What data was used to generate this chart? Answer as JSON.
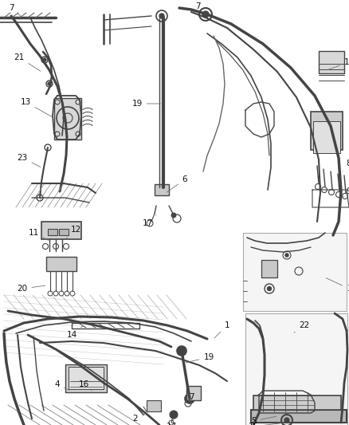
{
  "figsize": [
    4.38,
    5.33
  ],
  "dpi": 100,
  "bg": "#ffffff",
  "lc": "#444444",
  "lc2": "#666666",
  "lc3": "#999999",
  "label_fs": 7.5,
  "label_color": "#111111"
}
